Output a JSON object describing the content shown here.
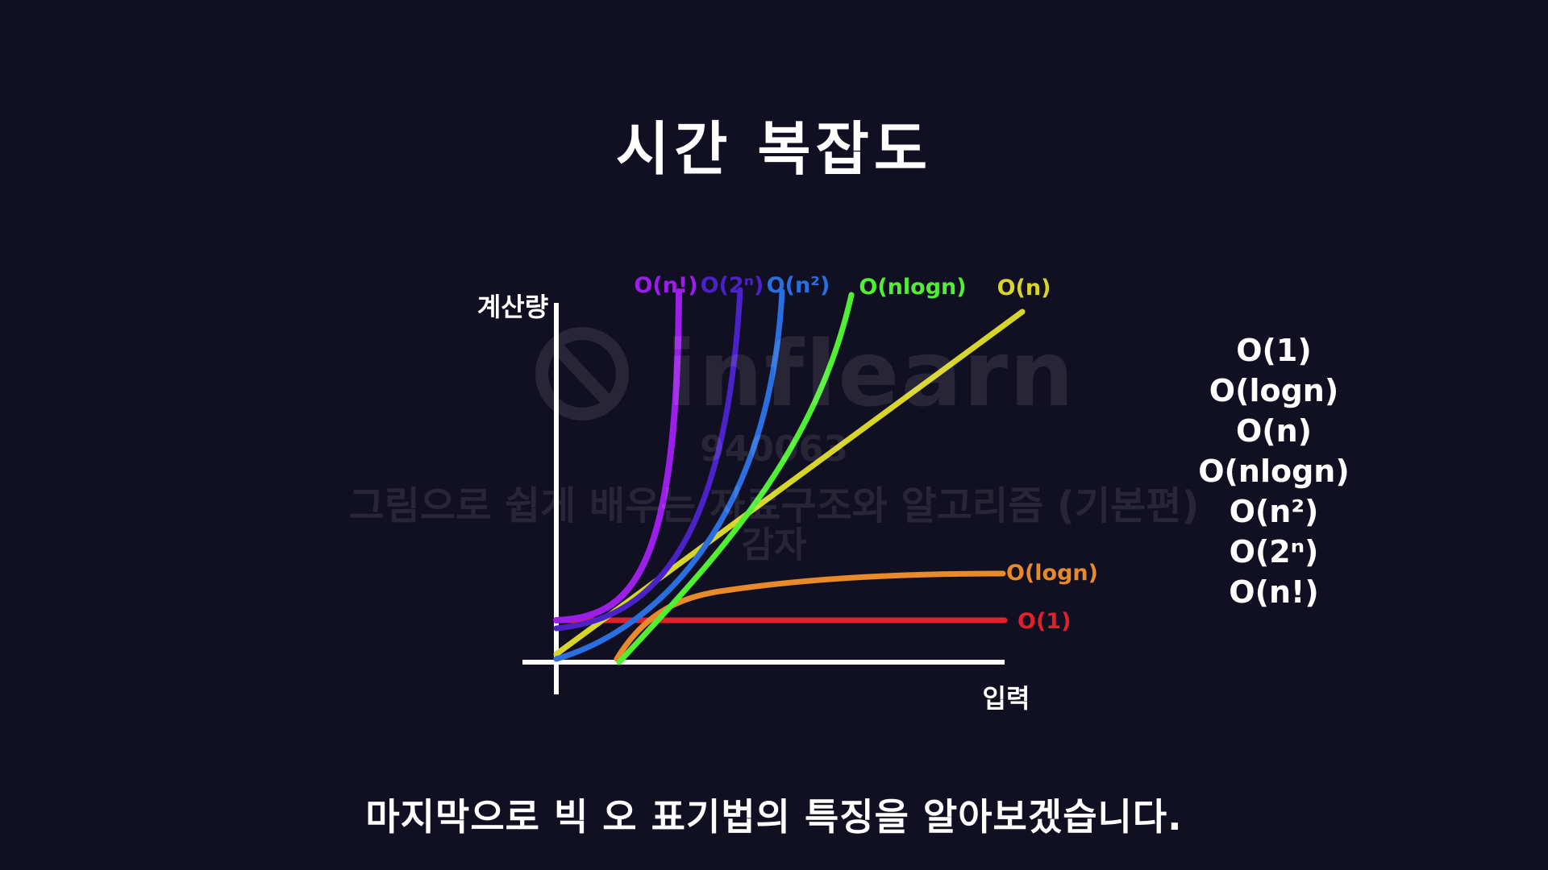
{
  "slide": {
    "title": "시간 복잡도",
    "subtitle": "마지막으로 빅 오 표기법의 특징을 알아보겠습니다."
  },
  "chart_data": {
    "type": "line",
    "xlabel": "입력",
    "ylabel": "계산량",
    "series": [
      {
        "name": "O(n!)",
        "color": "#9b1fe8"
      },
      {
        "name": "O(2ⁿ)",
        "color": "#4a22c8"
      },
      {
        "name": "O(n²)",
        "color": "#2a6fe0"
      },
      {
        "name": "O(nlogn)",
        "color": "#4ff032"
      },
      {
        "name": "O(n)",
        "color": "#d8d52a"
      },
      {
        "name": "O(logn)",
        "color": "#e8892a"
      },
      {
        "name": "O(1)",
        "color": "#e0202a"
      }
    ]
  },
  "legend": {
    "items": [
      "O(1)",
      "O(logn)",
      "O(n)",
      "O(nlogn)",
      "O(n²)",
      "O(2ⁿ)",
      "O(n!)"
    ]
  },
  "watermark": {
    "logo": "inflearn",
    "code": "940063",
    "course": "그림으로 쉽게 배우는 자료구조와 알고리즘 (기본편)",
    "role": "감자"
  }
}
